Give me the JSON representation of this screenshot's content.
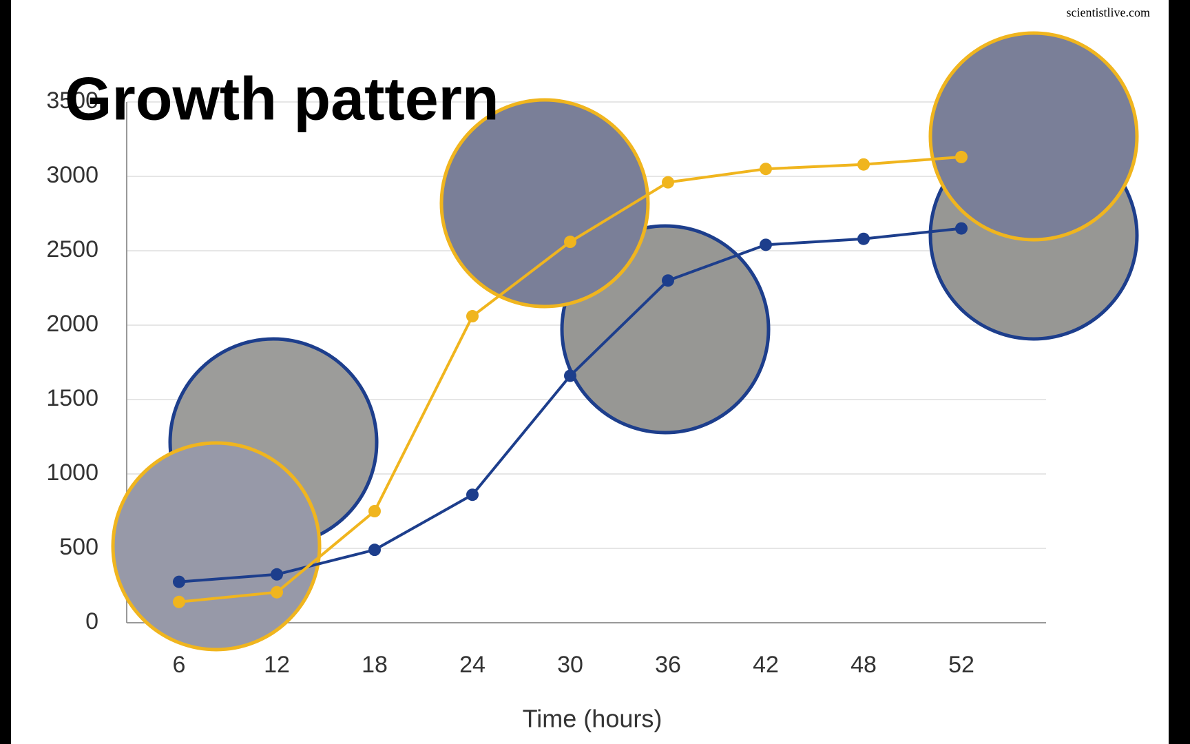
{
  "chart_data": {
    "type": "line",
    "title": "Growth pattern",
    "source": "scientistlive.com",
    "x_label": "Time (hours)",
    "categories": [
      "6",
      "12",
      "18",
      "24",
      "30",
      "36",
      "42",
      "48",
      "52"
    ],
    "series": [
      {
        "color": "#1d3e8c",
        "values": [
          275,
          325,
          490,
          860,
          1660,
          2300,
          2540,
          2580,
          2650
        ]
      },
      {
        "color": "#f0b51e",
        "values": [
          140,
          205,
          750,
          2060,
          2560,
          2960,
          3050,
          3080,
          3130
        ]
      }
    ],
    "ylim": [
      0,
      3500
    ],
    "yticks": [
      0,
      500,
      1000,
      1500,
      2000,
      2500,
      3000,
      3500
    ],
    "grid": true
  }
}
